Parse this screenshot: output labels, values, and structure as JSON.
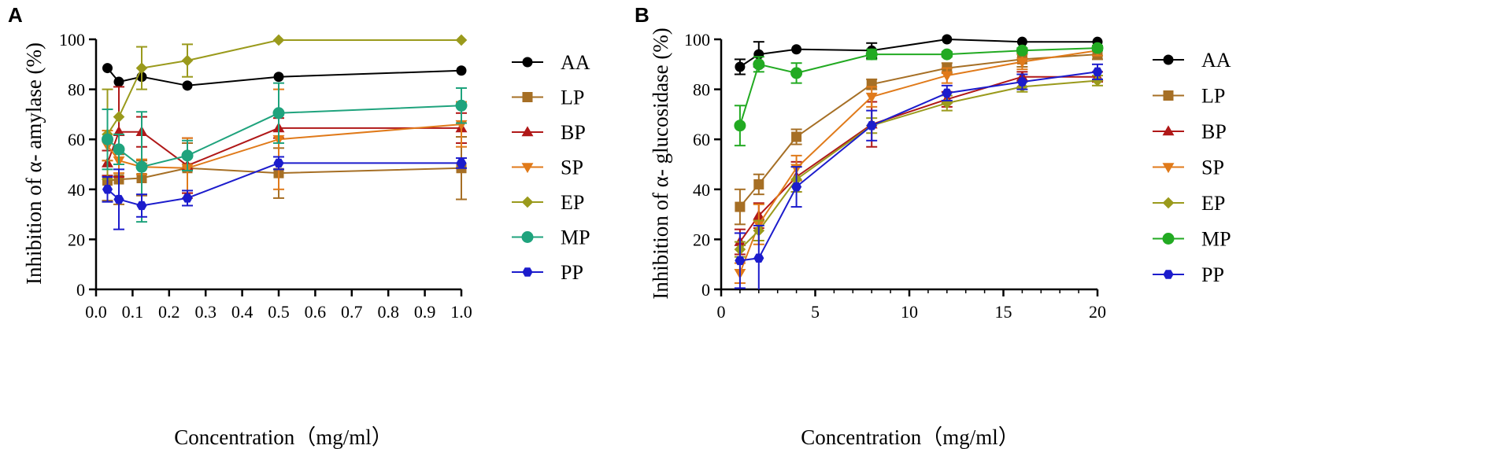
{
  "chart_data": [
    {
      "type": "line",
      "panel": "A",
      "title": "",
      "xlabel": "Concentration（mg/ml）",
      "ylabel": "Inhibition of α- amylase (%)",
      "xlim": [
        0.0,
        1.0
      ],
      "ylim": [
        0,
        100
      ],
      "xticks": [
        0.0,
        0.1,
        0.2,
        0.3,
        0.4,
        0.5,
        0.6,
        0.7,
        0.8,
        0.9,
        1.0
      ],
      "xtick_labels": [
        "0.0",
        "0.1",
        "0.2",
        "0.3",
        "0.4",
        "0.5",
        "0.6",
        "0.7",
        "0.8",
        "0.9",
        "1.0"
      ],
      "yticks": [
        0,
        20,
        40,
        60,
        80,
        100
      ],
      "ytick_labels": [
        "0",
        "20",
        "40",
        "60",
        "80",
        "100"
      ],
      "grid": false,
      "legend_position": "right",
      "x": [
        0.03125,
        0.0625,
        0.125,
        0.25,
        0.5,
        1.0
      ],
      "series": [
        {
          "name": "AA",
          "color": "#000000",
          "marker": "circle",
          "values": [
            88.5,
            83,
            85,
            81.5,
            85,
            87.5
          ],
          "errors": [
            0,
            0,
            0,
            0,
            0,
            0
          ]
        },
        {
          "name": "LP",
          "color": "#a66f25",
          "marker": "square",
          "values": [
            43.5,
            44,
            44.5,
            48.5,
            46.5,
            48.5
          ],
          "errors": [
            8,
            10,
            7,
            10,
            10,
            12.5
          ]
        },
        {
          "name": "BP",
          "color": "#b01818",
          "marker": "triangle-up",
          "values": [
            50.5,
            63,
            63,
            49.5,
            64.5,
            64.5
          ],
          "errors": [
            5,
            18,
            6,
            11,
            4,
            6
          ]
        },
        {
          "name": "SP",
          "color": "#e07a1a",
          "marker": "triangle-down",
          "values": [
            57.5,
            51.5,
            49,
            48.5,
            60,
            66
          ],
          "errors": [
            6,
            5,
            3,
            12,
            20,
            9
          ]
        },
        {
          "name": "EP",
          "color": "#9a9a1c",
          "marker": "diamond",
          "values": [
            62,
            69,
            88.5,
            91.5,
            99.7,
            99.7
          ],
          "errors": [
            18,
            0,
            8.5,
            6.5,
            0,
            0
          ]
        },
        {
          "name": "MP",
          "color": "#1fa37d",
          "marker": "circle",
          "values": [
            60,
            56,
            49,
            53.5,
            70.5,
            73.5
          ],
          "errors": [
            12,
            6,
            22,
            6,
            12,
            7
          ]
        },
        {
          "name": "PP",
          "color": "#1c1ccc",
          "marker": "hexagon",
          "values": [
            40,
            36,
            33.5,
            36.5,
            50.5,
            50.5
          ],
          "errors": [
            5,
            12,
            4.5,
            3,
            2.5,
            2
          ]
        }
      ]
    },
    {
      "type": "line",
      "panel": "B",
      "title": "",
      "xlabel": "Concentration（mg/ml）",
      "ylabel": "Inhibition of α- glucosidase (%)",
      "xlim": [
        0,
        20
      ],
      "ylim": [
        0,
        100
      ],
      "xticks": [
        0,
        5,
        10,
        15,
        20
      ],
      "xtick_labels": [
        "0",
        "5",
        "10",
        "15",
        "20"
      ],
      "yticks": [
        0,
        20,
        40,
        60,
        80,
        100
      ],
      "ytick_labels": [
        "0",
        "20",
        "40",
        "60",
        "80",
        "100"
      ],
      "grid": false,
      "legend_position": "right",
      "x": [
        1,
        2,
        4,
        8,
        12,
        16,
        20
      ],
      "series": [
        {
          "name": "AA",
          "color": "#000000",
          "marker": "circle",
          "values": [
            89,
            94,
            96,
            95.5,
            100,
            99,
            99
          ],
          "errors": [
            3,
            5,
            0,
            3,
            0,
            0,
            0
          ]
        },
        {
          "name": "LP",
          "color": "#a66f25",
          "marker": "square",
          "values": [
            33,
            42,
            61,
            82,
            88.5,
            92,
            94
          ],
          "errors": [
            7,
            4,
            3,
            2,
            2,
            3,
            2
          ]
        },
        {
          "name": "BP",
          "color": "#b01818",
          "marker": "triangle-up",
          "values": [
            19,
            29.5,
            45,
            66,
            76,
            85,
            85
          ],
          "errors": [
            5,
            5,
            6,
            9,
            3,
            2,
            2
          ]
        },
        {
          "name": "SP",
          "color": "#e07a1a",
          "marker": "triangle-down",
          "values": [
            6.5,
            26,
            48.5,
            77,
            85.5,
            91,
            95.5
          ],
          "errors": [
            4,
            8,
            5,
            4,
            3,
            3,
            2
          ]
        },
        {
          "name": "EP",
          "color": "#9a9a1c",
          "marker": "diamond",
          "values": [
            16,
            23.5,
            44,
            65.5,
            74.5,
            81,
            83.5
          ],
          "errors": [
            3,
            4,
            5,
            3,
            3,
            2,
            2
          ]
        },
        {
          "name": "MP",
          "color": "#22aa22",
          "marker": "circle",
          "values": [
            65.5,
            90,
            86.5,
            94,
            94,
            95.5,
            96.5
          ],
          "errors": [
            8,
            3,
            4,
            2,
            1,
            1,
            1
          ]
        },
        {
          "name": "PP",
          "color": "#1c1ccc",
          "marker": "hexagon",
          "values": [
            11.5,
            12.5,
            41,
            65.5,
            78.5,
            83,
            87
          ],
          "errors": [
            11,
            13,
            8,
            6,
            3,
            3,
            3
          ]
        }
      ]
    }
  ]
}
